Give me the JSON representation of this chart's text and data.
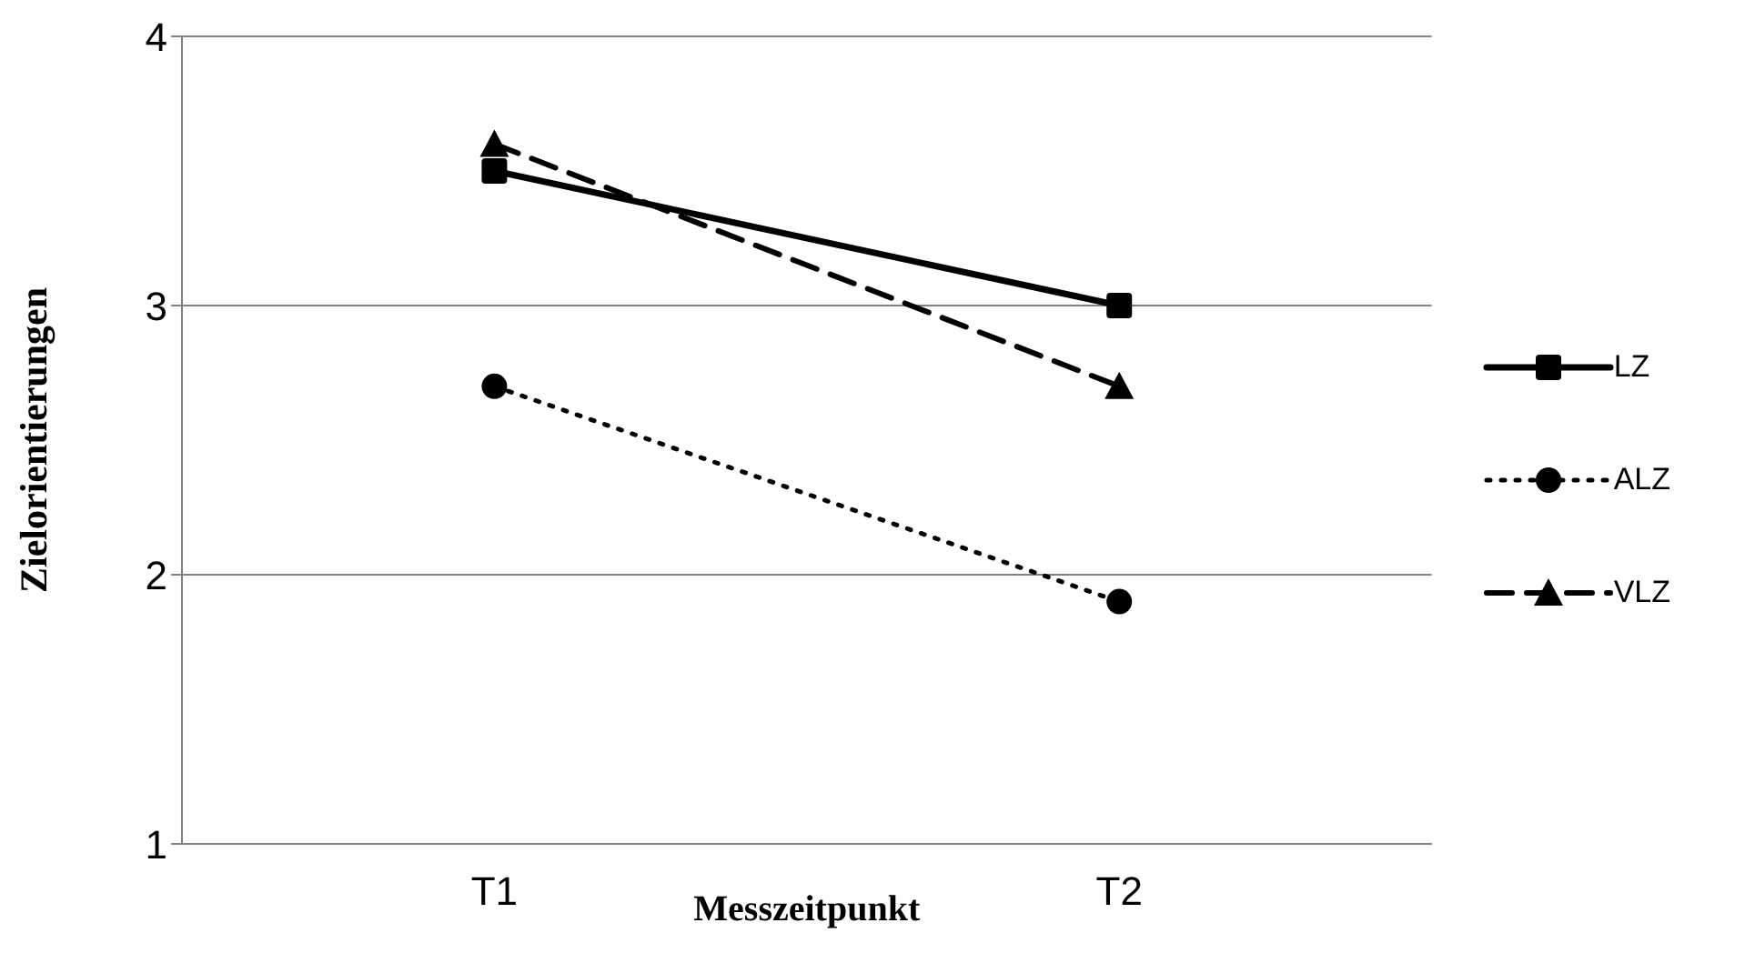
{
  "chart_data": {
    "type": "line",
    "xlabel": "Messzeitpunkt",
    "ylabel": "Zielorientierungen",
    "categories": [
      "T1",
      "T2"
    ],
    "series": [
      {
        "name": "LZ",
        "color": "#000000",
        "values": [
          3.5,
          3.0
        ],
        "marker": "square",
        "line_style": "solid"
      },
      {
        "name": "ALZ",
        "color": "#000000",
        "values": [
          2.7,
          1.9
        ],
        "marker": "circle",
        "line_style": "dotted"
      },
      {
        "name": "VLZ",
        "color": "#000000",
        "values": [
          3.6,
          2.7
        ],
        "marker": "triangle",
        "line_style": "dashed"
      }
    ],
    "ylim": [
      1,
      4
    ],
    "yticks": [
      1,
      2,
      3,
      4
    ],
    "grid": "y",
    "legend": "right"
  }
}
